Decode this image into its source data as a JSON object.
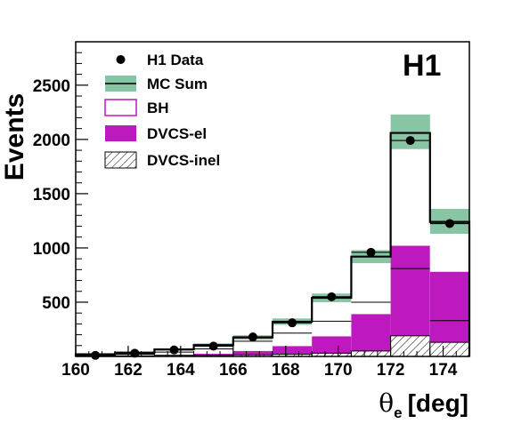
{
  "chart_data": {
    "type": "histogram",
    "experiment_label": "H1",
    "xlabel": "θ",
    "xlabel_subscript": "e",
    "xlabel_unit": "[deg]",
    "ylabel": "Events",
    "xlim": [
      160,
      175
    ],
    "ylim": [
      0,
      2900
    ],
    "x_ticks": [
      160,
      162,
      164,
      166,
      168,
      170,
      172,
      174
    ],
    "y_ticks": [
      500,
      1000,
      1500,
      2000,
      2500
    ],
    "bin_edges": [
      160,
      161.5,
      163,
      164.5,
      166,
      167.5,
      169,
      170.5,
      172,
      173.5,
      175
    ],
    "legend": [
      {
        "label": "H1 Data",
        "style": "marker"
      },
      {
        "label": "MC Sum",
        "style": "band-line"
      },
      {
        "label": "BH",
        "style": "open-box"
      },
      {
        "label": "DVCS-el",
        "style": "filled-box"
      },
      {
        "label": "DVCS-inel",
        "style": "hatched-box"
      }
    ],
    "series": [
      {
        "name": "H1 Data",
        "x": [
          160.75,
          162.25,
          163.75,
          165.25,
          166.75,
          168.25,
          169.75,
          171.25,
          172.75,
          174.25
        ],
        "values": [
          10,
          30,
          60,
          95,
          180,
          310,
          550,
          960,
          1990,
          1225
        ]
      },
      {
        "name": "MC Sum",
        "values": [
          20,
          35,
          65,
          105,
          175,
          320,
          540,
          920,
          2060,
          1240
        ],
        "band_low": [
          10,
          25,
          55,
          90,
          155,
          290,
          500,
          860,
          1910,
          1130
        ],
        "band_high": [
          30,
          45,
          75,
          120,
          195,
          350,
          580,
          980,
          2230,
          1360
        ]
      },
      {
        "name": "BH",
        "values": [
          10,
          20,
          40,
          70,
          140,
          215,
          325,
          500,
          810,
          330
        ]
      },
      {
        "name": "DVCS-el",
        "values": [
          5,
          10,
          15,
          25,
          50,
          95,
          185,
          390,
          1020,
          780
        ]
      },
      {
        "name": "DVCS-inel",
        "values": [
          5,
          5,
          10,
          10,
          15,
          20,
          30,
          50,
          190,
          130
        ]
      }
    ],
    "colors": {
      "band": "#88c5a5",
      "dvcs_el": "#be19be",
      "bh_legend": "#be19be",
      "line": "#000000"
    }
  }
}
